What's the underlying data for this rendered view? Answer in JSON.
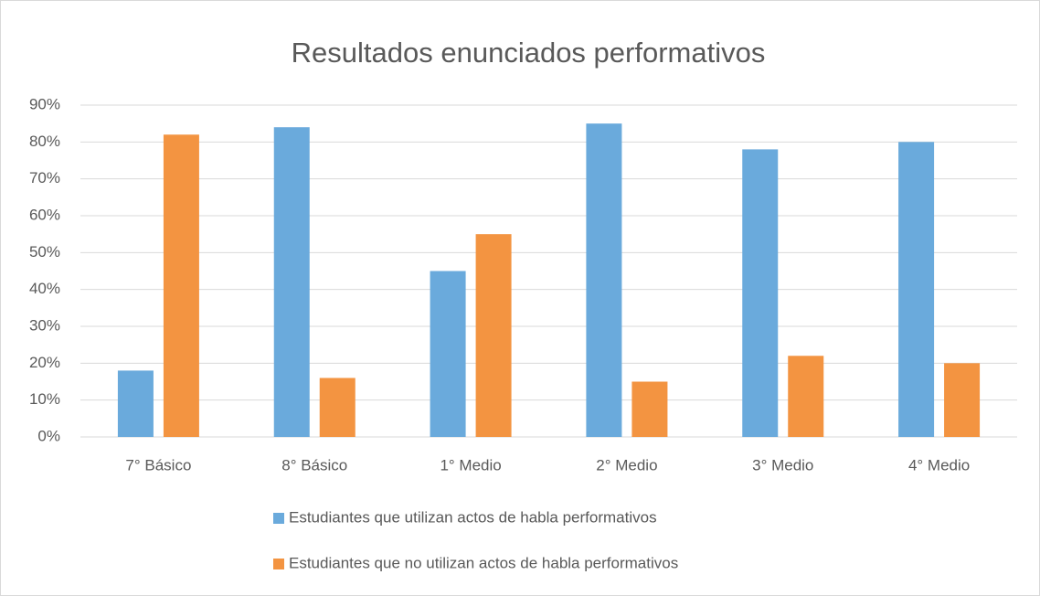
{
  "chart_data": {
    "type": "bar",
    "title": "Resultados enunciados performativos",
    "categories": [
      "7° Básico",
      "8° Básico",
      "1° Medio",
      "2° Medio",
      "3° Medio",
      "4° Medio"
    ],
    "series": [
      {
        "name": "Estudiantes que utilizan actos de habla performativos",
        "color": "#6aaadc",
        "values": [
          18,
          84,
          45,
          85,
          78,
          80
        ]
      },
      {
        "name": "Estudiantes que no utilizan actos de habla performativos",
        "color": "#f39441",
        "values": [
          82,
          16,
          55,
          15,
          22,
          20
        ]
      }
    ],
    "ylim": [
      0,
      90
    ],
    "yticks": [
      {
        "value": 0,
        "label": "0%"
      },
      {
        "value": 10,
        "label": "10%"
      },
      {
        "value": 20,
        "label": "20%"
      },
      {
        "value": 30,
        "label": "30%"
      },
      {
        "value": 40,
        "label": "40%"
      },
      {
        "value": 50,
        "label": "50%"
      },
      {
        "value": 60,
        "label": "60%"
      },
      {
        "value": 70,
        "label": "70%"
      },
      {
        "value": 80,
        "label": "80%"
      },
      {
        "value": 90,
        "label": "90%"
      }
    ],
    "grid": true,
    "legend": "bottom"
  }
}
